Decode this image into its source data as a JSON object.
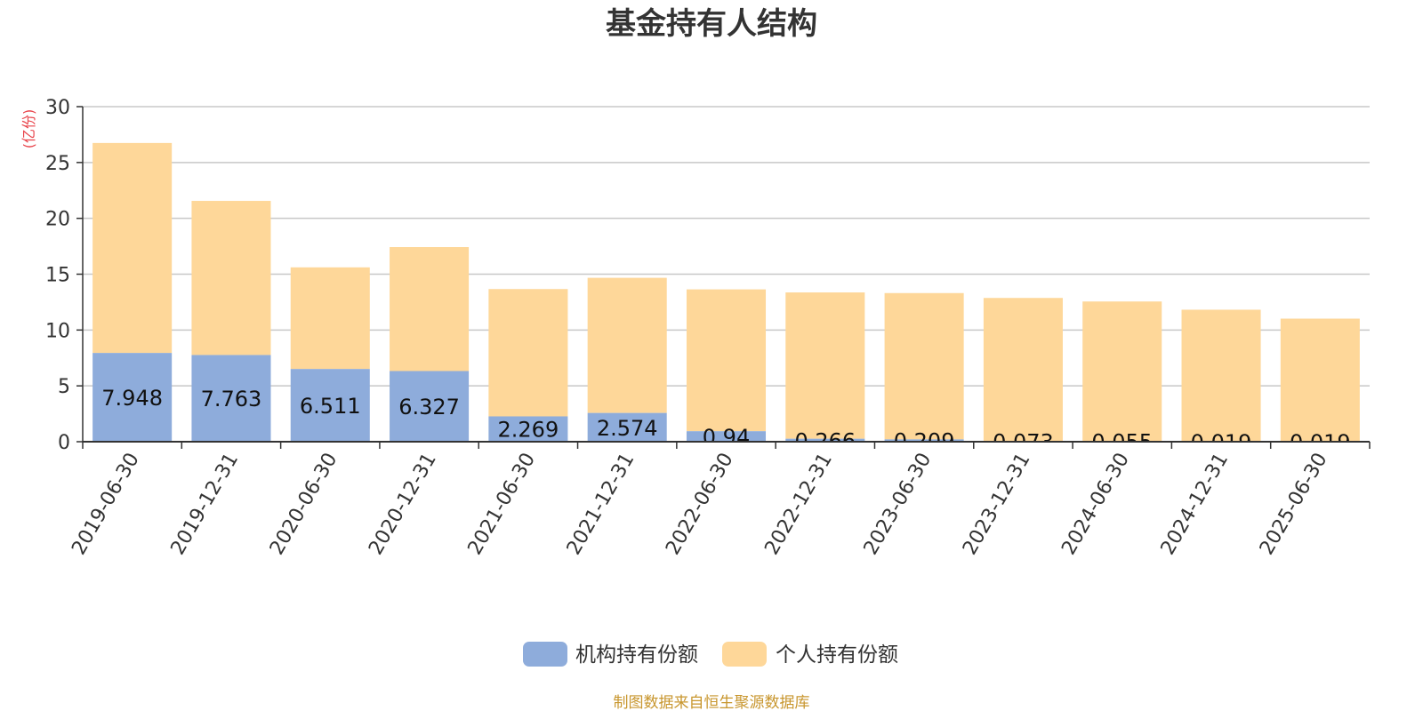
{
  "colors": {
    "institutional": "#8eacdb",
    "individual": "#fed799",
    "ylabel": "#e8434a",
    "source": "#c8962e",
    "grid": "#c8c8c8",
    "axis": "#333333"
  },
  "footer": {
    "source": "制图数据来自恒生聚源数据库"
  },
  "chart_data": {
    "type": "bar",
    "stacked": true,
    "title": "基金持有人结构",
    "ylabel": "(亿份)",
    "xlabel": "",
    "ylim": [
      0,
      30
    ],
    "yticks": [
      0,
      5,
      10,
      15,
      20,
      25,
      30
    ],
    "grid": true,
    "legend_position": "bottom-center",
    "categories": [
      "2019-06-30",
      "2019-12-31",
      "2020-06-30",
      "2020-12-31",
      "2021-06-30",
      "2021-12-31",
      "2022-06-30",
      "2022-12-31",
      "2023-06-30",
      "2023-12-31",
      "2024-06-30",
      "2024-12-31",
      "2025-06-30"
    ],
    "series": [
      {
        "name": "机构持有份额",
        "values": [
          7.948,
          7.763,
          6.511,
          6.327,
          2.269,
          2.574,
          0.94,
          0.266,
          0.209,
          0.073,
          0.055,
          0.019,
          0.019
        ]
      },
      {
        "name": "个人持有份额",
        "values": [
          18.8,
          13.8,
          9.1,
          11.1,
          11.4,
          12.1,
          12.7,
          13.1,
          13.1,
          12.8,
          12.5,
          11.8,
          11.0
        ]
      }
    ]
  }
}
